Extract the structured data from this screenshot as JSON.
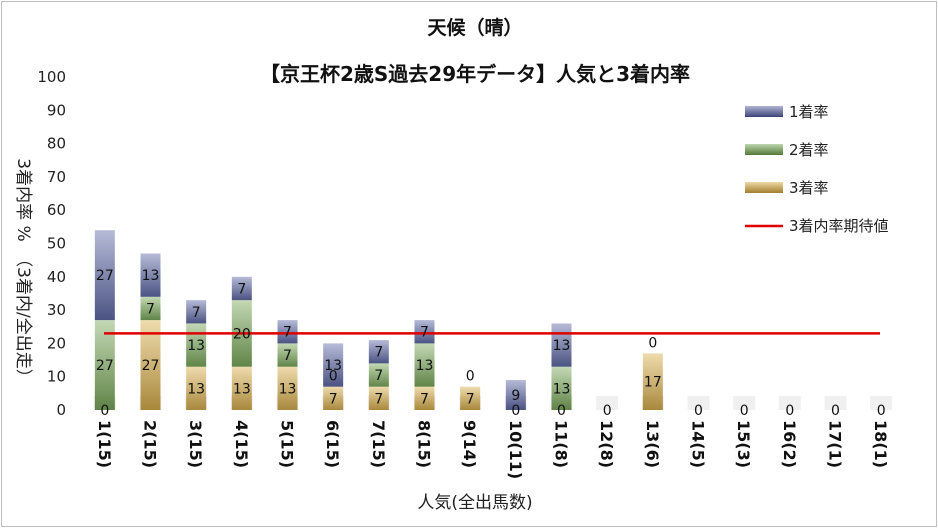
{
  "chart_data": {
    "type": "bar",
    "title": "天候（晴）",
    "subtitle": "【京王杯2歳S過去29年データ】人気と3着内率",
    "xlabel": "人気(全出馬数)",
    "ylabel": "3着内率 %　（3着内/全出走）",
    "ylim": [
      0,
      100
    ],
    "yticks": [
      "0",
      "10",
      "20",
      "30",
      "40",
      "50",
      "60",
      "70",
      "80",
      "90",
      "100"
    ],
    "categories": [
      "1(15)",
      "2(15)",
      "3(15)",
      "4(15)",
      "5(15)",
      "6(15)",
      "7(15)",
      "8(15)",
      "9(14)",
      "10(11)",
      "11(8)",
      "12(8)",
      "13(6)",
      "14(5)",
      "15(3)",
      "16(2)",
      "17(1)",
      "18(1)"
    ],
    "stacked": true,
    "series": [
      {
        "name": "3着率",
        "color": "#d8a93a",
        "values": [
          0,
          27,
          13,
          13,
          13,
          7,
          7,
          7,
          7,
          0,
          0,
          0,
          17,
          0,
          0,
          0,
          0,
          0
        ],
        "labels": [
          "0",
          "27",
          "13",
          "13",
          "13",
          "7",
          "7",
          "7",
          "7",
          "0",
          "0",
          "0",
          "17",
          "0",
          "0",
          "0",
          "0",
          "0"
        ]
      },
      {
        "name": "2着率",
        "color": "#6fa24a",
        "values": [
          27,
          7,
          13,
          20,
          7,
          0,
          7,
          13,
          0,
          0,
          13,
          0,
          0,
          0,
          0,
          0,
          0,
          0
        ],
        "labels": [
          "27",
          "7",
          "13",
          "20",
          "7",
          "0",
          "7",
          "13",
          "",
          "",
          "13",
          "",
          "",
          "",
          "",
          "",
          "",
          ""
        ]
      },
      {
        "name": "1着率",
        "color": "#4f5ba0",
        "values": [
          27,
          13,
          7,
          7,
          7,
          13,
          7,
          7,
          0,
          9,
          13,
          0,
          0,
          0,
          0,
          0,
          0,
          0
        ],
        "labels": [
          "27",
          "13",
          "7",
          "7",
          "7",
          "13",
          "7",
          "7",
          "0",
          "9",
          "13",
          "",
          "0",
          "",
          "",
          "",
          "",
          ""
        ]
      }
    ],
    "reference_line": {
      "name": "3着内率期待値",
      "value": 23,
      "color": "#e00000"
    },
    "legend_position": "right",
    "grid": false
  }
}
